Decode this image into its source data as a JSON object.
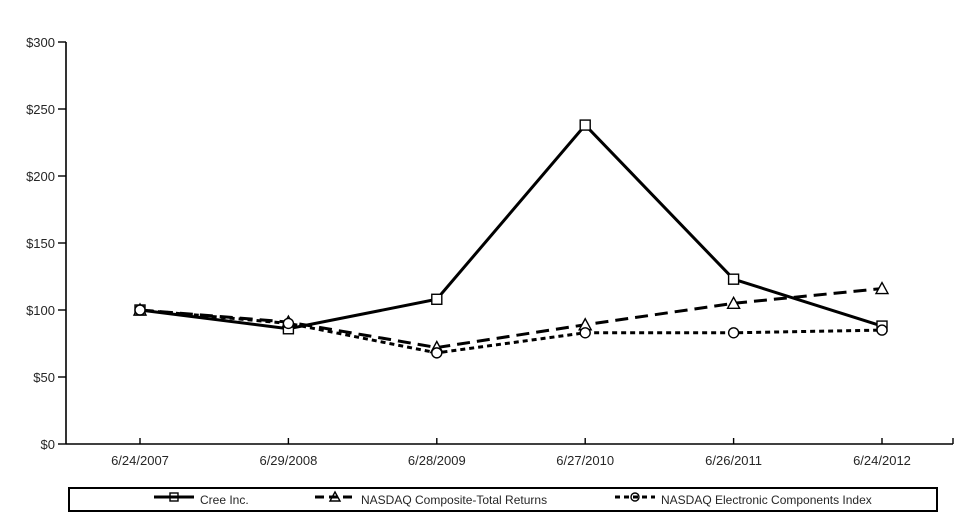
{
  "chart_data": {
    "type": "line",
    "title": "",
    "xlabel": "",
    "ylabel": "",
    "x_categories": [
      "6/24/2007",
      "6/29/2008",
      "6/28/2009",
      "6/27/2010",
      "6/26/2011",
      "6/24/2012"
    ],
    "y_axis": {
      "min": 0,
      "max": 300,
      "step": 50,
      "tick_prefix": "$",
      "tick_labels": [
        "$0",
        "$50",
        "$100",
        "$150",
        "$200",
        "$250",
        "$300"
      ]
    },
    "grid": false,
    "legend_position": "bottom",
    "series": [
      {
        "name": "Cree Inc.",
        "marker": "square",
        "line_style": "solid",
        "values": [
          100,
          86,
          108,
          238,
          123,
          88
        ]
      },
      {
        "name": "NASDAQ Composite-Total Returns",
        "marker": "triangle",
        "line_style": "long-dash",
        "values": [
          100,
          91,
          72,
          89,
          105,
          116
        ]
      },
      {
        "name": "NASDAQ Electronic Components Index",
        "marker": "circle",
        "line_style": "short-dash",
        "values": [
          100,
          90,
          68,
          83,
          83,
          85
        ]
      }
    ]
  },
  "colors": {
    "line": "#000000",
    "text": "#262626",
    "background": "#ffffff",
    "legend_border": "#000000"
  }
}
